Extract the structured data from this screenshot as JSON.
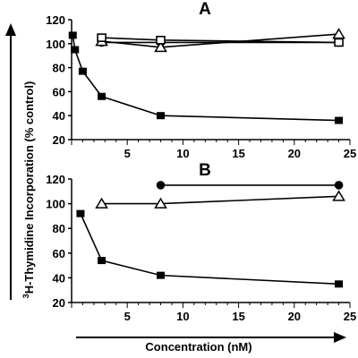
{
  "chart_data": [
    {
      "type": "line",
      "panel_label": "A",
      "xlim": [
        0,
        25
      ],
      "ylim": [
        20,
        120
      ],
      "x_ticks": [
        "5",
        "10",
        "15",
        "20",
        "25"
      ],
      "y_ticks": [
        "20",
        "40",
        "60",
        "80",
        "100",
        "120"
      ],
      "grid": false,
      "series": [
        {
          "marker": "square-filled",
          "points": [
            [
              0.1,
              107
            ],
            [
              0.3,
              95
            ],
            [
              1,
              77
            ],
            [
              2.7,
              56
            ],
            [
              8,
              40
            ],
            [
              24,
              36
            ]
          ]
        },
        {
          "marker": "circle-filled",
          "points": [
            [
              2.7,
              101
            ],
            [
              8,
              101
            ],
            [
              24,
              101
            ]
          ]
        },
        {
          "marker": "triangle-open",
          "points": [
            [
              2.7,
              102
            ],
            [
              8,
              97
            ],
            [
              24,
              108
            ]
          ]
        },
        {
          "marker": "square-open",
          "points": [
            [
              2.7,
              105
            ],
            [
              8,
              103
            ],
            [
              24,
              101
            ]
          ]
        }
      ]
    },
    {
      "type": "line",
      "panel_label": "B",
      "xlim": [
        0,
        25
      ],
      "ylim": [
        20,
        120
      ],
      "x_ticks": [
        "5",
        "10",
        "15",
        "20",
        "25"
      ],
      "y_ticks": [
        "20",
        "40",
        "60",
        "80",
        "100",
        "120"
      ],
      "grid": false,
      "series": [
        {
          "marker": "square-filled",
          "points": [
            [
              0.8,
              92
            ],
            [
              2.7,
              54
            ],
            [
              8,
              42
            ],
            [
              24,
              35
            ]
          ]
        },
        {
          "marker": "circle-filled",
          "points": [
            [
              8,
              115
            ],
            [
              24,
              115
            ]
          ]
        },
        {
          "marker": "triangle-open",
          "points": [
            [
              2.7,
              100
            ],
            [
              8,
              100
            ],
            [
              24,
              106
            ]
          ]
        }
      ]
    }
  ],
  "y_axis_title_sup": "3",
  "y_axis_title": "H-Thymidine Incorporation (% control)",
  "x_axis_title": "Concentration (nM)"
}
